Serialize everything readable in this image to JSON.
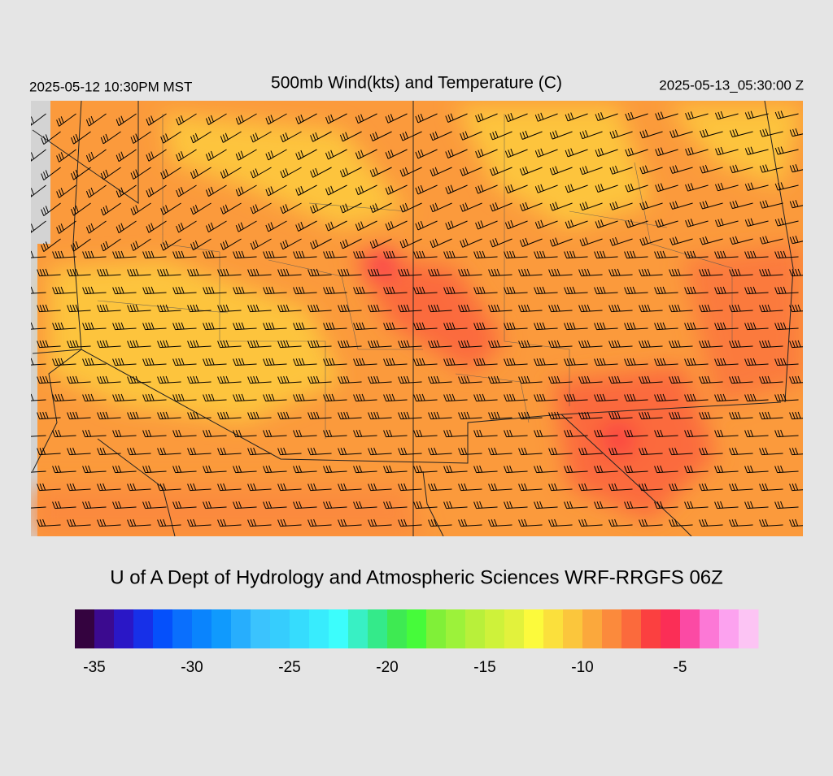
{
  "header": {
    "left": "2025-05-12 10:30PM MST",
    "title": "500mb Wind(kts) and Temperature (C)",
    "right": "2025-05-13_05:30:00 Z"
  },
  "credit": "U of A Dept of Hydrology and Atmospheric Sciences WRF-RRGFS 06Z",
  "colorbar": {
    "lim": [
      -36,
      -1
    ],
    "colors": [
      "#34033f",
      "#3b0a8f",
      "#2a17c6",
      "#1730e8",
      "#0550fb",
      "#0a6ffd",
      "#0a84fd",
      "#109afd",
      "#27aefd",
      "#3bc3fd",
      "#36cdfd",
      "#36dcfd",
      "#38ecfd",
      "#3cfdfc",
      "#38f0c4",
      "#34ea8a",
      "#3eea52",
      "#46fb3a",
      "#80f038",
      "#9cf23a",
      "#b8f03a",
      "#cef23a",
      "#e2f23c",
      "#fcfa3c",
      "#fbe03c",
      "#fbc63c",
      "#fba83c",
      "#fb8a3c",
      "#fb6a3c",
      "#fb4040",
      "#fb2e56",
      "#fb4aa4",
      "#fc78d6",
      "#fca2ef",
      "#fcc4f4",
      "#fde2f8",
      "#fdf2fb"
    ],
    "ticks": [
      -35,
      -30,
      -25,
      -20,
      -15,
      -10,
      -5
    ]
  }
}
